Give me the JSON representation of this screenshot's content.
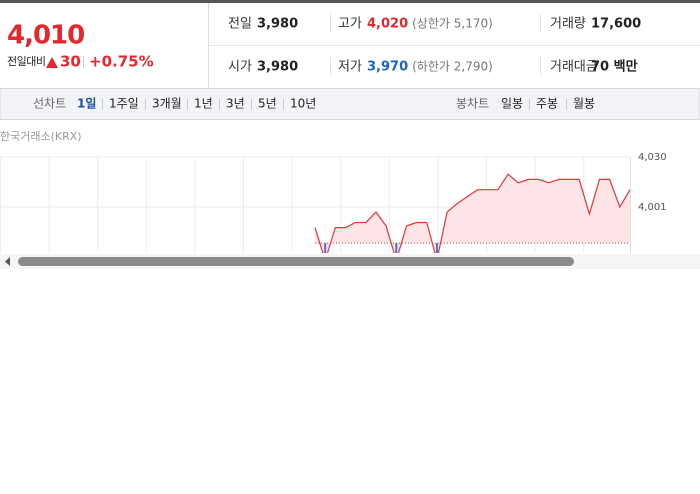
{
  "quote": {
    "price": "4,010",
    "change_label": "전일대비",
    "change": "30",
    "change_rate": "+0.75%"
  },
  "stats": [
    [
      {
        "label": "전일",
        "value": "3,980"
      },
      {
        "label": "고가",
        "value": "4,020",
        "note": "(상한가 5,170)"
      },
      {
        "label": "거래량",
        "value": "17,600"
      }
    ],
    [
      {
        "label": "시가",
        "value": "3,980"
      },
      {
        "label": "저가",
        "value": "3,970",
        "note": "(하한가 2,790)"
      },
      {
        "label": "거래대금",
        "value": "70 백만"
      }
    ]
  ],
  "toolbar": {
    "line_label": "선차트",
    "line_periods": [
      "1일",
      "1주일",
      "3개월",
      "1년",
      "3년",
      "5년",
      "10년"
    ],
    "candle_label": "봉차트",
    "candle_periods": [
      "일봉",
      "주봉",
      "월봉"
    ]
  },
  "source": "한국거래소(KRX)",
  "chart_data": {
    "type": "line",
    "color": "#e8343b",
    "base": 3980,
    "values": [
      3989,
      3970,
      3989,
      3989,
      3992,
      3992,
      3998,
      3990,
      3970,
      3990,
      3992,
      3992,
      3970,
      3998,
      4003,
      4007,
      4011,
      4011,
      4011,
      4020,
      4015,
      4017,
      4017,
      4015,
      4017,
      4017,
      4017,
      3997,
      4017,
      4017,
      4001,
      4011
    ],
    "ylim": [
      3965,
      4030
    ],
    "yticks": [
      {
        "value": 4030,
        "label": "4,030"
      },
      {
        "value": 4001,
        "label": "4,001"
      }
    ],
    "grid": true
  }
}
